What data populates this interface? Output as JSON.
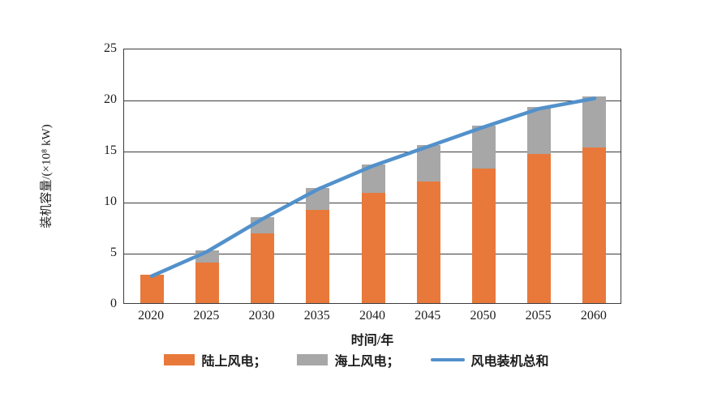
{
  "figure": {
    "y_axis_label": "装机容量/(×10⁸ kW)",
    "x_axis_label": "时间/年"
  },
  "legend": {
    "onshore_label": "陆上风电；",
    "offshore_label": "海上风电；",
    "total_label": "风电装机总和"
  },
  "colors": {
    "onshore": "#E8793B",
    "offshore": "#A7A7A7",
    "total_line": "#5291CB",
    "axis": "#3c3c3c"
  },
  "chart_data": {
    "type": "bar",
    "subtype": "stacked-bars-with-total-line",
    "title": "",
    "xlabel": "时间/年",
    "ylabel": "装机容量/(×10⁸ kW)",
    "categories": [
      "2020",
      "2025",
      "2030",
      "2035",
      "2040",
      "2045",
      "2050",
      "2055",
      "2060"
    ],
    "series": [
      {
        "name": "陆上风电",
        "type": "bar",
        "color": "#E8793B",
        "values": [
          2.8,
          4.0,
          6.8,
          9.1,
          10.8,
          11.9,
          13.2,
          14.6,
          15.2
        ]
      },
      {
        "name": "海上风电",
        "type": "bar",
        "color": "#A7A7A7",
        "values": [
          0,
          1.2,
          1.6,
          2.2,
          2.8,
          3.6,
          4.2,
          4.6,
          5.0
        ]
      },
      {
        "name": "风电装机总和",
        "type": "line",
        "color": "#5291CB",
        "values": [
          2.8,
          5.2,
          8.4,
          11.3,
          13.6,
          15.5,
          17.4,
          19.2,
          20.2
        ]
      }
    ],
    "ylim": [
      0,
      25
    ],
    "yticks": [
      0,
      5,
      10,
      15,
      20,
      25
    ],
    "grid": "horizontal",
    "legend_position": "bottom"
  }
}
